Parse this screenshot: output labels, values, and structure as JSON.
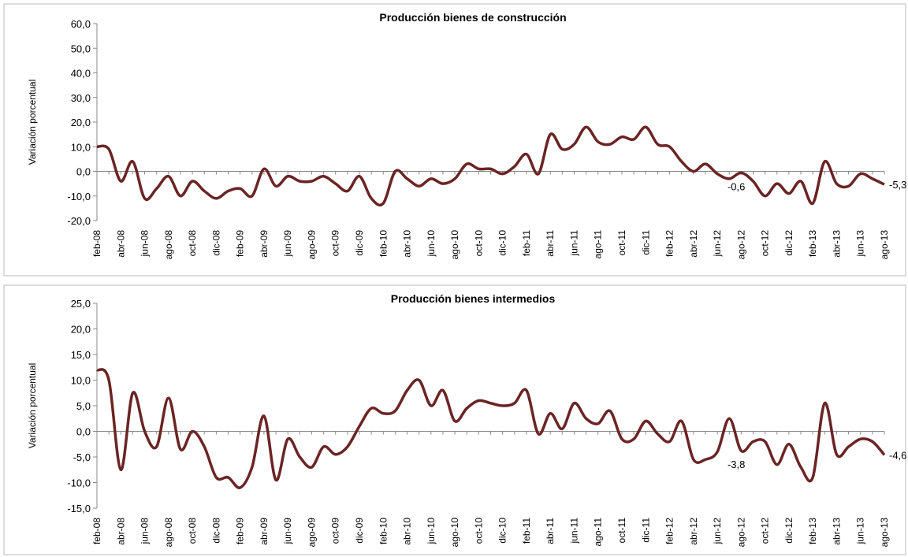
{
  "chart_data": [
    {
      "type": "line",
      "title": "Producción bienes de construcción",
      "y_label": "Variación porcentual",
      "categories": [
        "feb-08",
        null,
        "abr-08",
        null,
        "jun-08",
        null,
        "ago-08",
        null,
        "oct-08",
        null,
        "dic-08",
        null,
        "feb-09",
        null,
        "abr-09",
        null,
        "jun-09",
        null,
        "ago-09",
        null,
        "oct-09",
        null,
        "dic-09",
        null,
        "feb-10",
        null,
        "abr-10",
        null,
        "jun-10",
        null,
        "ago-10",
        null,
        "oct-10",
        null,
        "dic-10",
        null,
        "feb-11",
        null,
        "abr-11",
        null,
        "jun-11",
        null,
        "ago-11",
        null,
        "oct-11",
        null,
        "dic-11",
        null,
        "feb-12",
        null,
        "abr-12",
        null,
        "jun-12",
        null,
        "ago-12",
        null,
        "oct-12",
        null,
        "dic-12",
        null,
        "feb-13",
        null,
        "abr-13",
        null,
        "jun-13",
        null,
        "ago-13"
      ],
      "series": [
        {
          "color": "#6b2424",
          "values": [
            10,
            9,
            -4,
            4,
            -11,
            -7,
            -2,
            -10,
            -4,
            -8,
            -11,
            -8,
            -7,
            -10,
            1,
            -6,
            -2,
            -4,
            -4,
            -2,
            -5,
            -8,
            -2,
            -11,
            -13,
            0,
            -3,
            -6,
            -3,
            -5,
            -3,
            3,
            1,
            1,
            -1,
            2,
            7,
            -1,
            15,
            9,
            11,
            18,
            12,
            11,
            14,
            13,
            18,
            11,
            10,
            4,
            0,
            3,
            -1,
            -3,
            -0.6,
            -4,
            -10,
            -5,
            -9,
            -4,
            -13,
            4,
            -5,
            -6,
            -1,
            -3,
            -5.3
          ],
          "value_labels": [
            null,
            null,
            null,
            null,
            null,
            null,
            null,
            null,
            null,
            null,
            null,
            null,
            null,
            null,
            null,
            null,
            null,
            null,
            null,
            null,
            null,
            null,
            null,
            null,
            null,
            null,
            null,
            null,
            null,
            null,
            null,
            null,
            null,
            null,
            null,
            null,
            null,
            null,
            null,
            null,
            null,
            null,
            null,
            null,
            null,
            null,
            null,
            null,
            null,
            null,
            null,
            null,
            null,
            null,
            "-0,6",
            null,
            null,
            null,
            null,
            null,
            null,
            null,
            null,
            null,
            null,
            null,
            "-5,3"
          ]
        }
      ],
      "ylim": [
        -20,
        60
      ],
      "yticks": [
        {
          "value": -20,
          "label": "-20,0"
        },
        {
          "value": -10,
          "label": "-10,0"
        },
        {
          "value": 0,
          "label": "0,0"
        },
        {
          "value": 10,
          "label": "10,0"
        },
        {
          "value": 20,
          "label": "20,0"
        },
        {
          "value": 30,
          "label": "30,0"
        },
        {
          "value": 40,
          "label": "40,0"
        },
        {
          "value": 50,
          "label": "50,0"
        },
        {
          "value": 60,
          "label": "60,0"
        }
      ]
    },
    {
      "type": "line",
      "title": "Producción bienes intermedios",
      "y_label": "Variación porcentual",
      "categories": [
        "feb-08",
        null,
        "abr-08",
        null,
        "jun-08",
        null,
        "ago-08",
        null,
        "oct-08",
        null,
        "dic-08",
        null,
        "feb-09",
        null,
        "abr-09",
        null,
        "jun-09",
        null,
        "ago-09",
        null,
        "oct-09",
        null,
        "dic-09",
        null,
        "feb-10",
        null,
        "abr-10",
        null,
        "jun-10",
        null,
        "ago-10",
        null,
        "oct-10",
        null,
        "dic-10",
        null,
        "feb-11",
        null,
        "abr-11",
        null,
        "jun-11",
        null,
        "ago-11",
        null,
        "oct-11",
        null,
        "dic-11",
        null,
        "feb-12",
        null,
        "abr-12",
        null,
        "jun-12",
        null,
        "ago-12",
        null,
        "oct-12",
        null,
        "dic-12",
        null,
        "feb-13",
        null,
        "abr-13",
        null,
        "jun-13",
        null,
        "ago-13"
      ],
      "series": [
        {
          "color": "#6b2424",
          "values": [
            12,
            10,
            -7.5,
            7.5,
            0,
            -3,
            6.5,
            -3.5,
            0,
            -3,
            -9,
            -9,
            -11,
            -7,
            3,
            -9.5,
            -1.5,
            -5,
            -7,
            -3,
            -4.5,
            -3,
            1,
            4.5,
            3.5,
            4,
            8,
            10,
            5,
            8,
            2,
            4.5,
            6,
            5.5,
            5,
            5.5,
            8,
            -0.5,
            3.5,
            0.5,
            5.5,
            2.5,
            1.5,
            4,
            -1.5,
            -1.5,
            2,
            -0.5,
            -2,
            2,
            -5.5,
            -5.5,
            -4,
            2.5,
            -3.8,
            -2,
            -2,
            -6.5,
            -2.5,
            -7,
            -9,
            5.5,
            -4.5,
            -3,
            -1.5,
            -2,
            -4.6
          ],
          "value_labels": [
            null,
            null,
            null,
            null,
            null,
            null,
            null,
            null,
            null,
            null,
            null,
            null,
            null,
            null,
            null,
            null,
            null,
            null,
            null,
            null,
            null,
            null,
            null,
            null,
            null,
            null,
            null,
            null,
            null,
            null,
            null,
            null,
            null,
            null,
            null,
            null,
            null,
            null,
            null,
            null,
            null,
            null,
            null,
            null,
            null,
            null,
            null,
            null,
            null,
            null,
            null,
            null,
            null,
            null,
            "-3,8",
            null,
            null,
            null,
            null,
            null,
            null,
            null,
            null,
            null,
            null,
            null,
            "-4,6"
          ]
        }
      ],
      "ylim": [
        -15,
        25
      ],
      "yticks": [
        {
          "value": -15,
          "label": "-15,0"
        },
        {
          "value": -10,
          "label": "-10,0"
        },
        {
          "value": -5,
          "label": "-5,0"
        },
        {
          "value": 0,
          "label": "0,0"
        },
        {
          "value": 5,
          "label": "5,0"
        },
        {
          "value": 10,
          "label": "10,0"
        },
        {
          "value": 15,
          "label": "15,0"
        },
        {
          "value": 20,
          "label": "20,0"
        },
        {
          "value": 25,
          "label": "25,0"
        }
      ]
    }
  ]
}
